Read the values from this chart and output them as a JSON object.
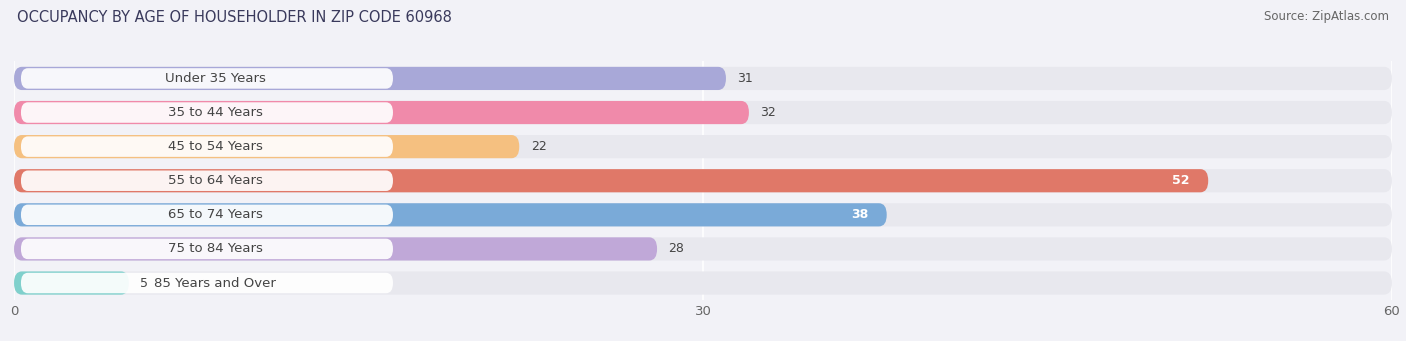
{
  "title": "OCCUPANCY BY AGE OF HOUSEHOLDER IN ZIP CODE 60968",
  "source": "Source: ZipAtlas.com",
  "categories": [
    "Under 35 Years",
    "35 to 44 Years",
    "45 to 54 Years",
    "55 to 64 Years",
    "65 to 74 Years",
    "75 to 84 Years",
    "85 Years and Over"
  ],
  "values": [
    31,
    32,
    22,
    52,
    38,
    28,
    5
  ],
  "bar_colors": [
    "#a8a8d8",
    "#f08aaa",
    "#f5c080",
    "#e07868",
    "#7aaad8",
    "#c0a8d8",
    "#80d0cc"
  ],
  "bar_bg_color": "#e8e8ee",
  "xlim_max": 60,
  "xticks": [
    0,
    30,
    60
  ],
  "title_fontsize": 10.5,
  "source_fontsize": 8.5,
  "label_fontsize": 9.5,
  "value_fontsize": 9,
  "bg_color": "#f2f2f7",
  "bar_height": 0.68,
  "white_label_bg": "#ffffff",
  "dark_text_color": "#444444",
  "white_text_color": "#ffffff",
  "white_inside_threshold": 35
}
